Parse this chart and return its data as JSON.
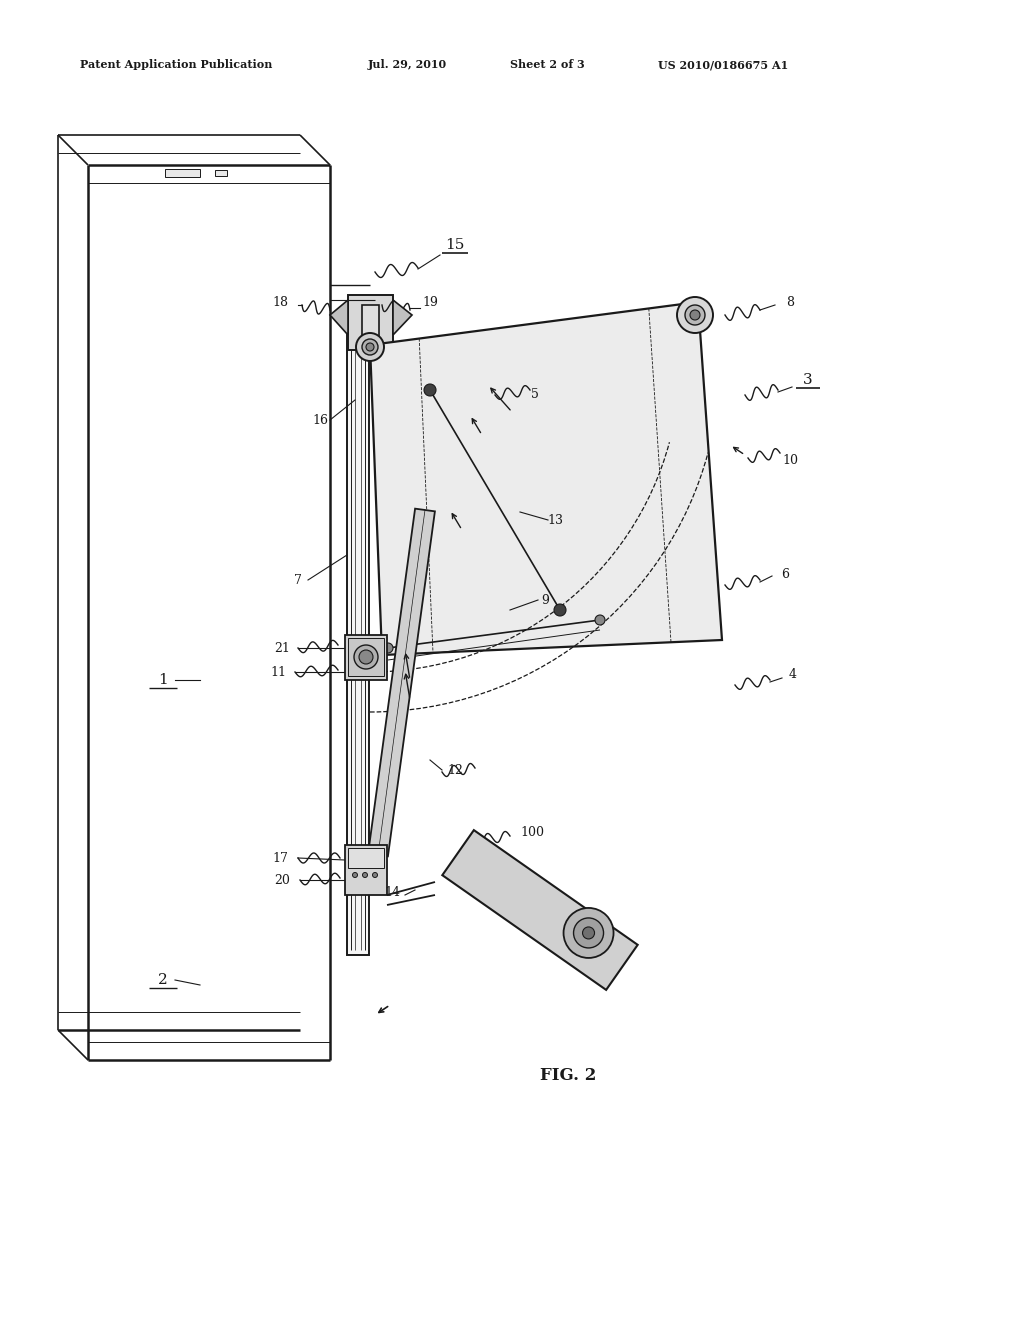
{
  "bg_color": "#ffffff",
  "lc": "#1a1a1a",
  "header_text": "Patent Application Publication",
  "header_date": "Jul. 29, 2010",
  "header_sheet": "Sheet 2 of 3",
  "header_patent": "US 2010/0186675 A1",
  "fig_label": "FIG. 2",
  "figsize": [
    10.24,
    13.2
  ],
  "dpi": 100
}
